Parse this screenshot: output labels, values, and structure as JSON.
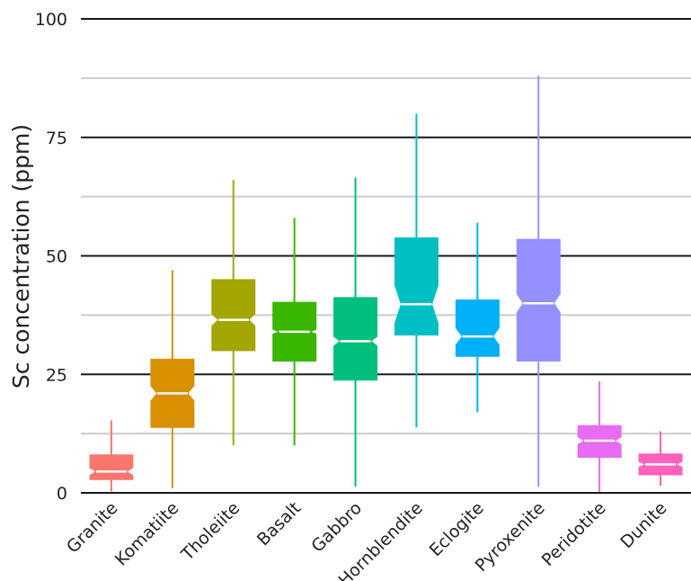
{
  "chart_data": {
    "type": "boxplot",
    "title": "",
    "xlabel": "",
    "ylabel": "Sc concentration (ppm)",
    "ylim": [
      0,
      100
    ],
    "yticks": [
      0,
      25,
      50,
      75,
      100
    ],
    "grid": true,
    "notched": true,
    "legend": "none",
    "categories": [
      "Granite",
      "Komatiite",
      "Tholeiite",
      "Basalt",
      "Gabbro",
      "Hornblendite",
      "Eclogite",
      "Pyroxenite",
      "Peridotite",
      "Dunite"
    ],
    "boxes": [
      {
        "name": "Granite",
        "min": 0.3,
        "q1": 2.8,
        "median": 4.5,
        "q3": 8.0,
        "max": 15.3,
        "notch_low": 3.7,
        "notch_high": 5.3,
        "color": "#F8766D"
      },
      {
        "name": "Komatiite",
        "min": 1.0,
        "q1": 13.8,
        "median": 21.0,
        "q3": 28.2,
        "max": 47.0,
        "notch_low": 19.4,
        "notch_high": 22.6,
        "color": "#D89000"
      },
      {
        "name": "Tholeiite",
        "min": 10.0,
        "q1": 30.0,
        "median": 36.5,
        "q3": 45.0,
        "max": 66.0,
        "notch_low": 35.2,
        "notch_high": 37.8,
        "color": "#A3A500"
      },
      {
        "name": "Basalt",
        "min": 10.0,
        "q1": 27.8,
        "median": 34.0,
        "q3": 40.2,
        "max": 58.0,
        "notch_low": 33.5,
        "notch_high": 34.5,
        "color": "#39B600"
      },
      {
        "name": "Gabbro",
        "min": 1.3,
        "q1": 23.8,
        "median": 32.0,
        "q3": 41.2,
        "max": 66.5,
        "notch_low": 31.0,
        "notch_high": 33.0,
        "color": "#00BF7D"
      },
      {
        "name": "Hornblendite",
        "min": 13.8,
        "q1": 33.3,
        "median": 39.8,
        "q3": 53.8,
        "max": 80.0,
        "notch_low": 35.8,
        "notch_high": 43.8,
        "color": "#00BFC4"
      },
      {
        "name": "Eclogite",
        "min": 17.0,
        "q1": 28.8,
        "median": 33.0,
        "q3": 40.7,
        "max": 57.0,
        "notch_low": 31.2,
        "notch_high": 34.8,
        "color": "#00B0F6"
      },
      {
        "name": "Pyroxenite",
        "min": 1.3,
        "q1": 27.8,
        "median": 40.0,
        "q3": 53.5,
        "max": 88.0,
        "notch_low": 38.0,
        "notch_high": 42.0,
        "color": "#9590FF"
      },
      {
        "name": "Peridotite",
        "min": 0.2,
        "q1": 7.5,
        "median": 11.0,
        "q3": 14.2,
        "max": 23.5,
        "notch_low": 10.2,
        "notch_high": 11.8,
        "color": "#E76BF3"
      },
      {
        "name": "Dunite",
        "min": 1.5,
        "q1": 3.8,
        "median": 6.0,
        "q3": 8.2,
        "max": 13.0,
        "notch_low": 5.4,
        "notch_high": 6.6,
        "color": "#FF62BC"
      }
    ]
  }
}
